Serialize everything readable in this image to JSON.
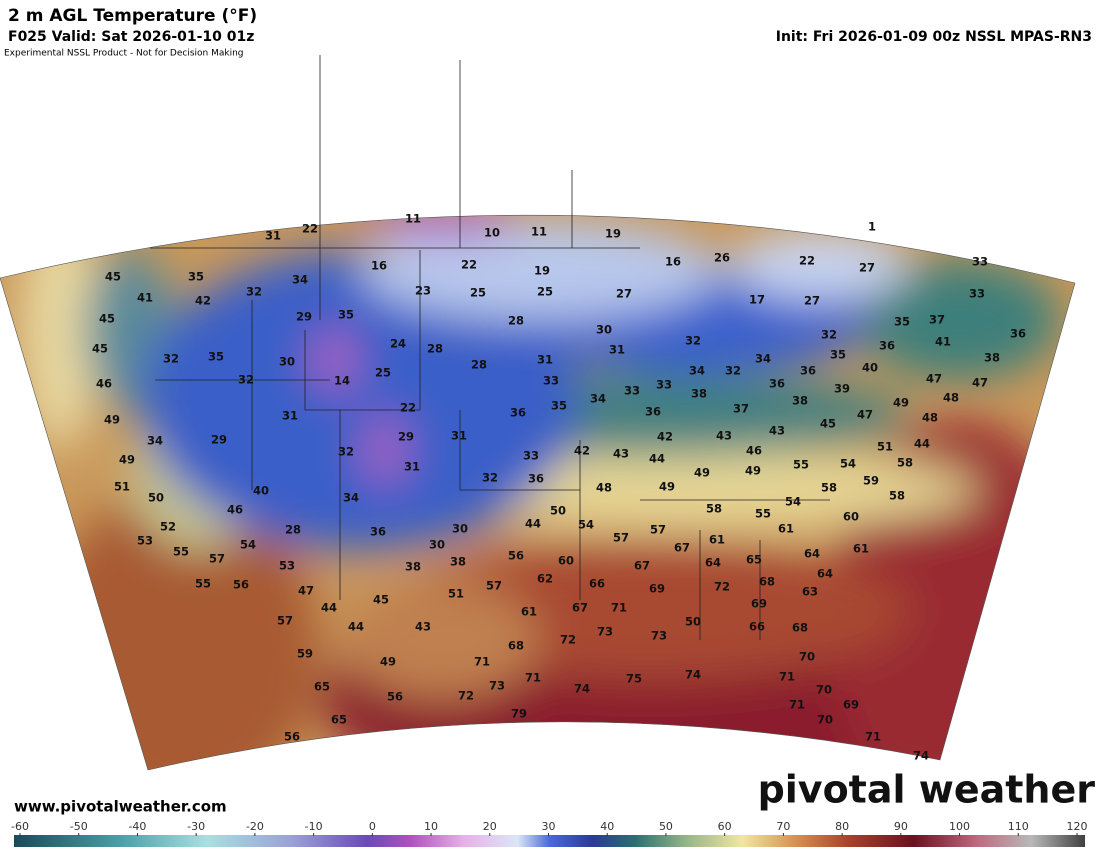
{
  "header": {
    "title": "2 m AGL Temperature (°F)",
    "valid": "F025 Valid: Sat 2026-01-10 01z",
    "init": "Init: Fri 2026-01-09 00z NSSL MPAS-RN3",
    "note": "Experimental NSSL Product - Not for Decision Making"
  },
  "map": {
    "labels": [
      11,
      10,
      11,
      19,
      1,
      22,
      31,
      45,
      35,
      34,
      16,
      22,
      19,
      16,
      26,
      22,
      27,
      33,
      41,
      42,
      32,
      23,
      25,
      25,
      27,
      17,
      27,
      33,
      45,
      29,
      35,
      28,
      35,
      37,
      45,
      24,
      28,
      30,
      32,
      32,
      41,
      36,
      32,
      35,
      30,
      31,
      31,
      35,
      36,
      38,
      46,
      32,
      14,
      25,
      28,
      33,
      34,
      32,
      34,
      36,
      40,
      47,
      47,
      33,
      33,
      34,
      38,
      36,
      38,
      39,
      48,
      49,
      31,
      22,
      35,
      36,
      36,
      37,
      47,
      49,
      48,
      34,
      29,
      29,
      31,
      42,
      43,
      42,
      43,
      43,
      45,
      46,
      51,
      44,
      49,
      32,
      31,
      33,
      44,
      49,
      49,
      55,
      54,
      58,
      51,
      32,
      36,
      48,
      49,
      58,
      59,
      58,
      50,
      40,
      46,
      34,
      54,
      50,
      54,
      58,
      55,
      52,
      28,
      36,
      30,
      44,
      57,
      57,
      61,
      60,
      53,
      54,
      30,
      67,
      61,
      64,
      61,
      55,
      57,
      56,
      60,
      64,
      65,
      64,
      53,
      38,
      38,
      62,
      66,
      67,
      69,
      72,
      68,
      63,
      55,
      56,
      47,
      57,
      51,
      45,
      44,
      61,
      67,
      71,
      69,
      57,
      44,
      43,
      73,
      73,
      50,
      66,
      68,
      72,
      68,
      59,
      49,
      71,
      70,
      65,
      73,
      71,
      74,
      75,
      74,
      71,
      70,
      56,
      72,
      65,
      79,
      71,
      69,
      70,
      56,
      71,
      74
    ]
  },
  "colorbar": {
    "ticks": [
      -60,
      -50,
      -40,
      -30,
      -20,
      -10,
      0,
      10,
      20,
      30,
      40,
      50,
      60,
      70,
      80,
      90,
      100,
      110,
      120
    ]
  },
  "footer": {
    "website": "www.pivotalweather.com",
    "logo": "pivotal weather"
  }
}
